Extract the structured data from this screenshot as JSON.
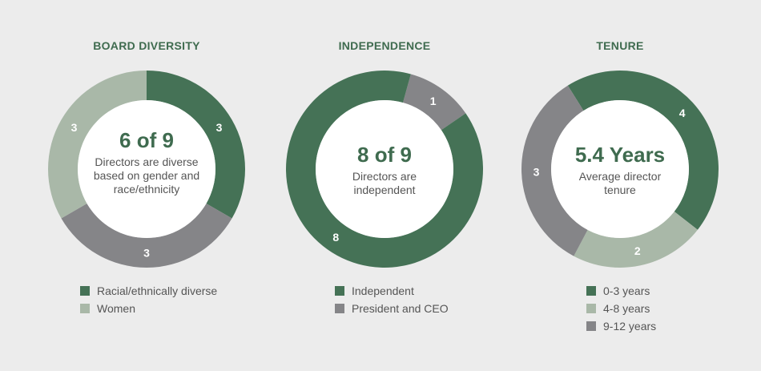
{
  "colors": {
    "green": "#457256",
    "light_green": "#a9b8a8",
    "gray": "#858588",
    "title": "#3f6b4f",
    "background": "#ececec"
  },
  "chart_data": [
    {
      "type": "pie",
      "title": "BOARD DIVERSITY",
      "center_value": "6 of 9",
      "center_text": "Directors are diverse based on gender and race/ethnicity",
      "slices": [
        {
          "value": 3,
          "label": "3",
          "color": "#457256"
        },
        {
          "value": 3,
          "label": "3",
          "color": "#858588"
        },
        {
          "value": 3,
          "label": "3",
          "color": "#a9b8a8"
        }
      ],
      "legend": [
        {
          "label": "Racial/ethnically diverse",
          "color": "#457256"
        },
        {
          "label": "Women",
          "color": "#a9b8a8"
        }
      ]
    },
    {
      "type": "pie",
      "title": "INDEPENDENCE",
      "center_value": "8 of 9",
      "center_text": "Directors are independent",
      "slices": [
        {
          "value": 1,
          "label": "1",
          "color": "#858588"
        },
        {
          "value": 8,
          "label": "8",
          "color": "#457256"
        }
      ],
      "legend": [
        {
          "label": "Independent",
          "color": "#457256"
        },
        {
          "label": "President and CEO",
          "color": "#858588"
        }
      ]
    },
    {
      "type": "pie",
      "title": "TENURE",
      "center_value": "5.4 Years",
      "center_text": "Average director tenure",
      "slices": [
        {
          "value": 4,
          "label": "4",
          "color": "#457256"
        },
        {
          "value": 2,
          "label": "2",
          "color": "#a9b8a8"
        },
        {
          "value": 3,
          "label": "3",
          "color": "#858588"
        }
      ],
      "legend": [
        {
          "label": "0-3 years",
          "color": "#457256"
        },
        {
          "label": "4-8 years",
          "color": "#a9b8a8"
        },
        {
          "label": "9-12 years",
          "color": "#858588"
        }
      ]
    }
  ]
}
